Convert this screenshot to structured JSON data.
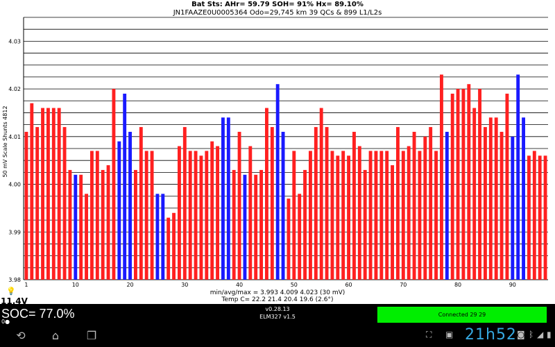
{
  "header": {
    "line1": "Bat Sts:  AHr= 59.79  SOH= 91%  Hx= 89.10%",
    "line2": "JN1FAAZE0U0005364 Odo=29,745 km  39 QCs  &  899 L1/L2s"
  },
  "chart_data": {
    "type": "bar",
    "ylabel": "50 mV Scale   Shunts 4812",
    "ylim": [
      3.98,
      4.035
    ],
    "yticks": [
      "3.98",
      "3.99",
      "4.00",
      "4.01",
      "4.02",
      "4.03"
    ],
    "xticks": [
      "1",
      "10",
      "20",
      "30",
      "40",
      "50",
      "60",
      "70",
      "80",
      "90"
    ],
    "xtick_values": [
      1,
      10,
      20,
      30,
      40,
      50,
      60,
      70,
      80,
      90
    ],
    "colors": {
      "normal": "#ff2020",
      "shunt": "#1a1aff"
    },
    "shunted_cells": [
      10,
      18,
      19,
      20,
      25,
      26,
      37,
      38,
      41,
      47,
      48,
      78,
      90,
      91,
      92
    ],
    "values": [
      4.011,
      4.017,
      4.012,
      4.016,
      4.016,
      4.016,
      4.016,
      4.012,
      4.003,
      4.002,
      4.002,
      3.998,
      4.007,
      4.007,
      4.003,
      4.004,
      4.02,
      4.009,
      4.019,
      4.011,
      4.003,
      4.012,
      4.007,
      4.007,
      3.998,
      3.998,
      3.993,
      3.994,
      4.008,
      4.012,
      4.007,
      4.007,
      4.006,
      4.007,
      4.009,
      4.008,
      4.014,
      4.014,
      4.003,
      4.011,
      4.002,
      4.008,
      4.002,
      4.003,
      4.016,
      4.012,
      4.021,
      4.011,
      3.997,
      4.007,
      3.998,
      4.003,
      4.007,
      4.012,
      4.016,
      4.012,
      4.007,
      4.006,
      4.007,
      4.006,
      4.011,
      4.008,
      4.003,
      4.007,
      4.007,
      4.007,
      4.007,
      4.004,
      4.012,
      4.007,
      4.008,
      4.011,
      4.007,
      4.01,
      4.012,
      4.007,
      4.023,
      4.011,
      4.019,
      4.02,
      4.02,
      4.021,
      4.016,
      4.02,
      4.012,
      4.014,
      4.014,
      4.011,
      4.019,
      4.01,
      4.023,
      4.014,
      4.006,
      4.007,
      4.006,
      4.006
    ]
  },
  "footer": {
    "stats": "min/avg/max = 3.993 4.009 4.023  (30 mV)",
    "temp": "Temp C= 22.2  21.4  20.4  19.6  (2.6°)"
  },
  "status": {
    "voltage": "11.4V",
    "soc": "SOC= 77.0%",
    "soc_sub": "0●",
    "version": "v0.28.13",
    "adapter": "ELM327 v1.5",
    "connection": "Connected 29 29"
  },
  "system": {
    "clock": "21h52",
    "nav_icons": [
      "back-icon",
      "home-icon",
      "recent-apps-icon"
    ],
    "status_icons": [
      "screenshot-icon",
      "storage-icon",
      "camera-icon",
      "bluetooth-icon",
      "wifi-icon",
      "battery-icon"
    ]
  }
}
